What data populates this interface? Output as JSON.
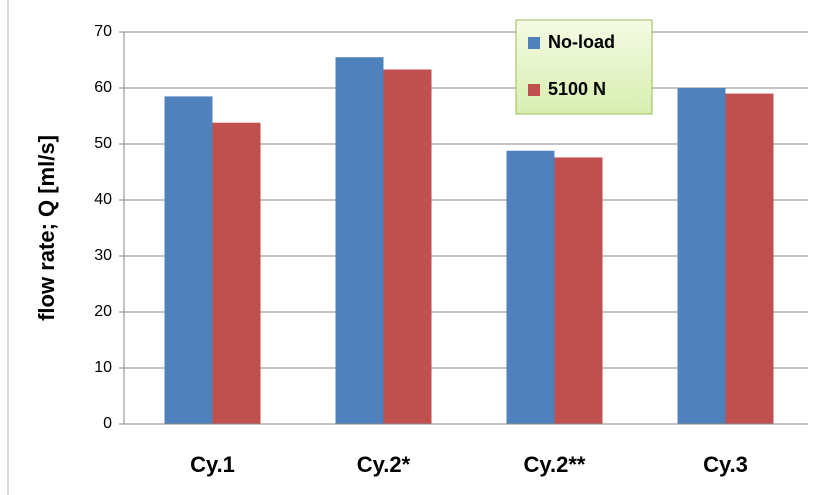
{
  "chart_data": {
    "type": "bar",
    "categories": [
      "Cy.1",
      "Cy.2*",
      "Cy.2**",
      "Cy.3"
    ],
    "series": [
      {
        "name": "No-load",
        "color": "#4f81bd",
        "values": [
          58.5,
          65.5,
          48.8,
          60
        ]
      },
      {
        "name": "5100 N",
        "color": "#c0504d",
        "values": [
          53.8,
          63.3,
          47.6,
          59
        ]
      }
    ],
    "y_label": "flow rate; Q [ml/s]",
    "ylim": [
      0,
      70
    ],
    "yticks": [
      0,
      10,
      20,
      30,
      40,
      50,
      60,
      70
    ],
    "grid": true,
    "legend": "top-right"
  }
}
